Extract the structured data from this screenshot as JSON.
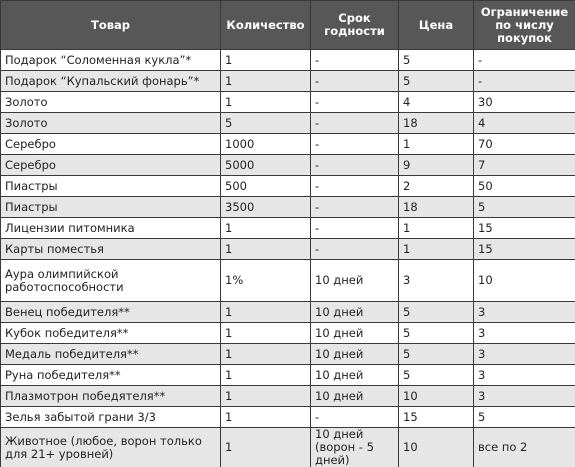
{
  "table": {
    "header": [
      "Товар",
      "Количество",
      "Срок годности",
      "Цена",
      "Ограничение по числу покупок"
    ],
    "rows": [
      [
        "Подарок “Соломенная кукла”*",
        "1",
        "-",
        "5",
        "-"
      ],
      [
        "Подарок “Купальский фонарь”*",
        "1",
        "-",
        "5",
        "-"
      ],
      [
        "Золото",
        "1",
        "-",
        "4",
        "30"
      ],
      [
        "Золото",
        "5",
        "-",
        "18",
        "4"
      ],
      [
        "Серебро",
        "1000",
        "-",
        "1",
        "70"
      ],
      [
        "Серебро",
        "5000",
        "-",
        "9",
        "7"
      ],
      [
        "Пиастры",
        "500",
        "-",
        "2",
        "50"
      ],
      [
        "Пиастры",
        "3500",
        "-",
        "18",
        "5"
      ],
      [
        "Лицензии питомника",
        "1",
        "-",
        "1",
        "15"
      ],
      [
        "Карты поместья",
        "1",
        "-",
        "1",
        "15"
      ],
      [
        "Аура олимпийской работоспособности",
        "1%",
        "10 дней",
        "3",
        "10"
      ],
      [
        "Венец победителя**",
        "1",
        "10 дней",
        "5",
        "3"
      ],
      [
        "Кубок победителя**",
        "1",
        "10 дней",
        "5",
        "3"
      ],
      [
        "Медаль победителя**",
        "1",
        "10 дней",
        "5",
        "3"
      ],
      [
        "Руна победителя**",
        "1",
        "10 дней",
        "5",
        "3"
      ],
      [
        "Плазмотрон победятеля**",
        "1",
        "10 дней",
        "10",
        "3"
      ],
      [
        "Зелья забытой грани 3/3",
        "1",
        "-",
        "15",
        "5"
      ],
      [
        "Животное (любое, ворон только для 21+ уровней)",
        "1",
        "10 дней (ворон - 5 дней)",
        "10",
        "все по 2"
      ]
    ]
  }
}
